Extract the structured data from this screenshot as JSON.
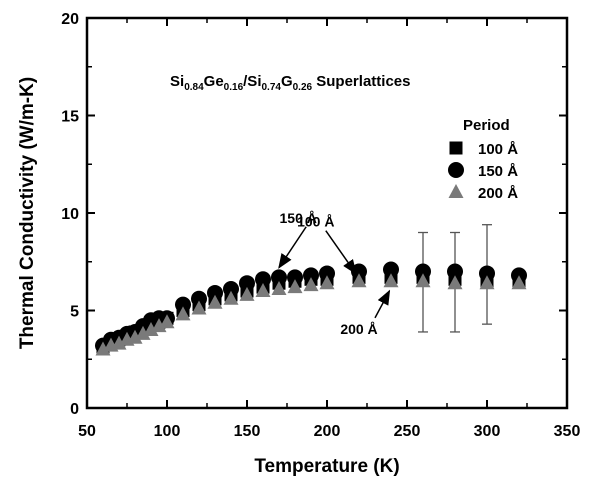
{
  "chart_data": {
    "type": "scatter",
    "title": {
      "main_base1": "Si",
      "main_sub1": "0.84",
      "main_base2": "Ge",
      "main_sub2": "0.16",
      "main_base3": "/Si",
      "main_sub3": "0.74",
      "main_base4": "G",
      "main_sub4": "0.26",
      "main_base5": " Superlattices"
    },
    "xlabel": "Temperature (K)",
    "ylabel": "Thermal Conductivity (W/m-K)",
    "xlim": [
      50,
      350
    ],
    "ylim": [
      0,
      20
    ],
    "x_ticks": [
      "50",
      "100",
      "150",
      "200",
      "250",
      "300",
      "350"
    ],
    "y_ticks": [
      "0",
      "5",
      "10",
      "15",
      "20"
    ],
    "legend": {
      "title": "Period",
      "placement": "right"
    },
    "series": [
      {
        "name": "100 Å",
        "marker": "square",
        "color": "#000000",
        "x": [
          60,
          65,
          70,
          75,
          80,
          85,
          90,
          95,
          100,
          110,
          120,
          130,
          140,
          150,
          160,
          170,
          180,
          190,
          200,
          220,
          240,
          260,
          280,
          300,
          320
        ],
        "y": [
          3.1,
          3.3,
          3.5,
          3.7,
          3.9,
          4.1,
          4.3,
          4.4,
          4.6,
          5.0,
          5.3,
          5.6,
          5.8,
          6.0,
          6.2,
          6.4,
          6.5,
          6.6,
          6.6,
          6.7,
          6.7,
          6.7,
          6.6,
          6.5,
          6.5
        ],
        "error": []
      },
      {
        "name": "150 Å",
        "marker": "circle",
        "color": "#000000",
        "x": [
          60,
          65,
          70,
          75,
          80,
          85,
          90,
          95,
          100,
          110,
          120,
          130,
          140,
          150,
          160,
          170,
          180,
          190,
          200,
          220,
          240,
          260,
          280,
          300,
          320
        ],
        "y": [
          3.2,
          3.5,
          3.6,
          3.8,
          3.9,
          4.2,
          4.5,
          4.6,
          4.6,
          5.3,
          5.6,
          5.9,
          6.1,
          6.4,
          6.6,
          6.7,
          6.7,
          6.8,
          6.9,
          7.0,
          7.1,
          7.0,
          7.0,
          6.9,
          6.8
        ],
        "error": []
      },
      {
        "name": "200 Å",
        "marker": "triangle",
        "color": "#7a7a7a",
        "x": [
          60,
          65,
          70,
          75,
          80,
          85,
          90,
          95,
          100,
          110,
          120,
          130,
          140,
          150,
          160,
          170,
          180,
          190,
          200,
          220,
          240,
          260,
          280,
          300,
          320
        ],
        "y": [
          3.0,
          3.2,
          3.3,
          3.5,
          3.6,
          3.8,
          4.0,
          4.2,
          4.4,
          4.8,
          5.1,
          5.4,
          5.6,
          5.8,
          6.0,
          6.1,
          6.2,
          6.3,
          6.4,
          6.5,
          6.5,
          6.5,
          6.4,
          6.4,
          6.4
        ],
        "error": [
          {
            "x": 260,
            "low": 3.9,
            "high": 9.0
          },
          {
            "x": 280,
            "low": 3.9,
            "high": 9.0
          },
          {
            "x": 300,
            "low": 4.3,
            "high": 9.4
          }
        ]
      }
    ],
    "annotations": [
      {
        "text": "150 Å",
        "x": 182,
        "y": 9.5,
        "arrow_to_x": 170,
        "arrow_to_y": 7.2
      },
      {
        "text": "100 Å",
        "x": 193,
        "y": 9.3,
        "arrow_to_x": 218,
        "arrow_to_y": 6.9
      },
      {
        "text": "200 Å",
        "x": 220,
        "y": 3.8,
        "arrow_to_x": 239,
        "arrow_to_y": 6.0
      }
    ]
  }
}
